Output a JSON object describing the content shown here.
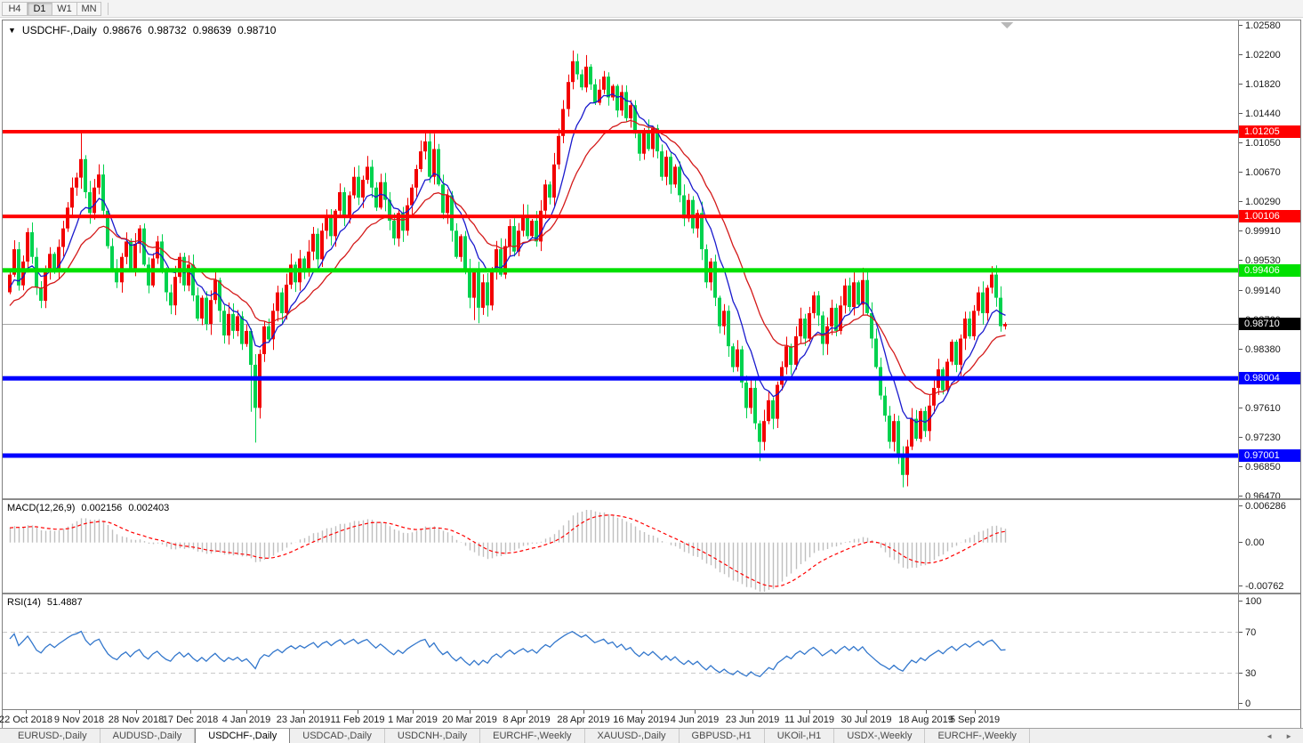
{
  "toolbar": {
    "timeframes": [
      {
        "label": "H4",
        "active": false
      },
      {
        "label": "D1",
        "active": true
      },
      {
        "label": "W1",
        "active": false
      },
      {
        "label": "MN",
        "active": false
      }
    ]
  },
  "chart": {
    "title_symbol": "USDCHF-,Daily",
    "ohlc": {
      "open": "0.98676",
      "high": "0.98732",
      "low": "0.98639",
      "close": "0.98710"
    }
  },
  "macd_panel": {
    "label": "MACD(12,26,9)",
    "value_main": "0.002156",
    "value_signal": "0.002403",
    "axis_labels": [
      "0.006286",
      "0.00",
      "-0.00762"
    ],
    "axis_values": [
      0.006286,
      0.0,
      -0.00762
    ]
  },
  "rsi_panel": {
    "label": "RSI(14)",
    "value": "51.4887",
    "axis_labels": [
      "100",
      "70",
      "30",
      "0"
    ],
    "axis_values": [
      100,
      70,
      30,
      0
    ],
    "dashed_levels": [
      70,
      30
    ]
  },
  "tabs": {
    "items": [
      {
        "label": "EURUSD-,Daily",
        "active": false
      },
      {
        "label": "AUDUSD-,Daily",
        "active": false
      },
      {
        "label": "USDCHF-,Daily",
        "active": true
      },
      {
        "label": "USDCAD-,Daily",
        "active": false
      },
      {
        "label": "USDCNH-,Daily",
        "active": false
      },
      {
        "label": "EURCHF-,Weekly",
        "active": false
      },
      {
        "label": "XAUUSD-,Daily",
        "active": false
      },
      {
        "label": "GBPUSD-,H1",
        "active": false
      },
      {
        "label": "UKOil-,H1",
        "active": false
      },
      {
        "label": "USDX-,Weekly",
        "active": false
      },
      {
        "label": "EURCHF-,Weekly",
        "active": false
      }
    ],
    "scroll_left": "◄",
    "scroll_right": "►"
  },
  "chart_data": {
    "type": "candlestick",
    "symbol": "USDCHF",
    "period": "Daily",
    "price_ticks": [
      "1.02580",
      "1.02200",
      "1.01820",
      "1.01440",
      "1.01050",
      "1.00670",
      "1.00290",
      "0.99910",
      "0.99530",
      "0.99140",
      "0.98760",
      "0.98380",
      "0.97610",
      "0.97230",
      "0.96850",
      "0.96470"
    ],
    "scale": {
      "top": 1.02649,
      "bottom": 0.96447
    },
    "levels": [
      {
        "label": "1.01205",
        "price": 1.01205,
        "color": "#ff0000",
        "weight": 4
      },
      {
        "label": "1.00106",
        "price": 1.00106,
        "color": "#ff0000",
        "weight": 4
      },
      {
        "label": "0.99406",
        "price": 0.99406,
        "color": "#00e000",
        "weight": 5
      },
      {
        "label": "0.98004",
        "price": 0.98004,
        "color": "#0000ff",
        "weight": 5
      },
      {
        "label": "0.97001",
        "price": 0.97001,
        "color": "#0000ff",
        "weight": 5
      }
    ],
    "current_price": {
      "value": 0.9871,
      "label": "0.98710"
    },
    "shift_marker_pos": 0.813,
    "dates": [
      {
        "label": "22 Oct 2018",
        "pos": 0.019
      },
      {
        "label": "9 Nov 2018",
        "pos": 0.062
      },
      {
        "label": "28 Nov 2018",
        "pos": 0.108
      },
      {
        "label": "17 Dec 2018",
        "pos": 0.152
      },
      {
        "label": "4 Jan 2019",
        "pos": 0.197
      },
      {
        "label": "23 Jan 2019",
        "pos": 0.243
      },
      {
        "label": "11 Feb 2019",
        "pos": 0.287
      },
      {
        "label": "1 Mar 2019",
        "pos": 0.332
      },
      {
        "label": "20 Mar 2019",
        "pos": 0.378
      },
      {
        "label": "8 Apr 2019",
        "pos": 0.424
      },
      {
        "label": "28 Apr 2019",
        "pos": 0.47
      },
      {
        "label": "16 May 2019",
        "pos": 0.517
      },
      {
        "label": "4 Jun 2019",
        "pos": 0.56
      },
      {
        "label": "23 Jun 2019",
        "pos": 0.607
      },
      {
        "label": "11 Jul 2019",
        "pos": 0.653
      },
      {
        "label": "30 Jul 2019",
        "pos": 0.699
      },
      {
        "label": "18 Aug 2019",
        "pos": 0.747
      },
      {
        "label": "5 Sep 2019",
        "pos": 0.787
      }
    ],
    "colors": {
      "bull": "#f20000",
      "bear": "#00d24e",
      "ma_fast": "#1a1acd",
      "ma_slow": "#d41a1a",
      "macd_hist": "#bfbfbf",
      "macd_signal": "#ff0000",
      "rsi_line": "#3377cc",
      "rsi_dash": "#c8c8c8",
      "current_line": "#a6a6a6",
      "shift_marker": "#b8b8b8"
    },
    "ma_fast_period": 9,
    "ma_slow_period": 21,
    "macd_params": [
      12,
      26,
      9
    ],
    "rsi_period": 14,
    "first_open": 0.9912,
    "extremes": {
      "max_high": 1.0226,
      "min_low": 0.9659
    },
    "pre_closes": [
      0.979,
      0.9782,
      0.9801,
      0.9815,
      0.9798,
      0.9822,
      0.9838,
      0.982,
      0.9845,
      0.9862,
      0.984,
      0.9858,
      0.9875,
      0.9855,
      0.9872,
      0.989,
      0.9868,
      0.9885,
      0.9902,
      0.988,
      0.9895,
      0.9912,
      0.9892,
      0.9908,
      0.9925,
      0.9905,
      0.9918,
      0.9935,
      0.9915,
      0.9928
    ],
    "closes": [
      0.9935,
      0.9968,
      0.9921,
      0.9952,
      0.999,
      0.9958,
      0.9918,
      0.9901,
      0.9938,
      0.9962,
      0.9943,
      0.9971,
      0.9995,
      1.0022,
      1.0048,
      1.0061,
      1.0085,
      1.0042,
      1.0015,
      1.0048,
      1.0065,
      1.0018,
      0.9972,
      0.9941,
      0.9925,
      0.9958,
      0.9978,
      0.9942,
      0.9975,
      0.9995,
      0.9948,
      0.9921,
      0.9956,
      0.9978,
      0.9941,
      0.9912,
      0.9895,
      0.9932,
      0.9958,
      0.9921,
      0.9948,
      0.9908,
      0.9878,
      0.9905,
      0.9871,
      0.9902,
      0.9928,
      0.9888,
      0.9856,
      0.9884,
      0.9862,
      0.9881,
      0.9845,
      0.9862,
      0.9818,
      0.9762,
      0.9832,
      0.9868,
      0.9851,
      0.9888,
      0.9912,
      0.9885,
      0.9922,
      0.9948,
      0.9925,
      0.9956,
      0.9938,
      0.9965,
      0.9988,
      0.9955,
      0.9992,
      1.0012,
      0.9985,
      1.0018,
      1.0042,
      1.0012,
      1.0038,
      1.0062,
      1.0035,
      1.0058,
      1.0075,
      1.0048,
      1.0022,
      1.0055,
      1.0032,
      1.0005,
      0.9982,
      1.0015,
      0.9992,
      1.0025,
      1.0048,
      1.0072,
      1.0095,
      1.0108,
      1.0062,
      1.0098,
      1.0052,
      1.0015,
      1.0038,
      0.9992,
      0.9958,
      0.9985,
      0.9942,
      0.9905,
      0.9938,
      0.9892,
      0.9925,
      0.9895,
      0.9942,
      0.9968,
      0.9935,
      0.9972,
      0.9998,
      0.9965,
      0.9992,
      1.0012,
      0.9985,
      1.0005,
      0.9978,
      1.0018,
      1.0052,
      1.0035,
      1.0078,
      1.0115,
      1.015,
      1.0185,
      1.0212,
      1.0195,
      1.0178,
      1.0205,
      1.0182,
      1.0158,
      1.0175,
      1.0192,
      1.0165,
      1.018,
      1.0148,
      1.0172,
      1.0138,
      1.0155,
      1.0118,
      1.0092,
      1.0122,
      1.0098,
      1.0125,
      1.0095,
      1.0062,
      1.0088,
      1.0052,
      1.0075,
      1.0038,
      1.0008,
      1.0032,
      0.9995,
      1.0015,
      0.9968,
      0.9925,
      0.9952,
      0.9905,
      0.9868,
      0.9888,
      0.9842,
      0.9815,
      0.9838,
      0.9795,
      0.9762,
      0.9788,
      0.9742,
      0.9718,
      0.9745,
      0.9772,
      0.9748,
      0.9792,
      0.9815,
      0.9842,
      0.9818,
      0.9855,
      0.9878,
      0.9852,
      0.9885,
      0.9908,
      0.9882,
      0.9845,
      0.9868,
      0.9892,
      0.9862,
      0.9895,
      0.9921,
      0.9893,
      0.9925,
      0.9896,
      0.9928,
      0.9885,
      0.9852,
      0.9815,
      0.9778,
      0.9752,
      0.9718,
      0.9745,
      0.9702,
      0.9675,
      0.9712,
      0.9748,
      0.9722,
      0.9758,
      0.9732,
      0.9765,
      0.9788,
      0.9812,
      0.9785,
      0.9822,
      0.9848,
      0.9818,
      0.9852,
      0.9878,
      0.9855,
      0.9888,
      0.9912,
      0.9885,
      0.9918,
      0.9935,
      0.9905,
      0.9868,
      0.9871
    ],
    "spikes": [
      {
        "i": 16,
        "high": 1.0121
      },
      {
        "i": 54,
        "low": 0.9757
      },
      {
        "i": 55,
        "low": 0.9717
      },
      {
        "i": 80,
        "high": 1.0089
      },
      {
        "i": 93,
        "high": 1.0121
      },
      {
        "i": 95,
        "high": 1.0118
      },
      {
        "i": 104,
        "low": 0.9876
      },
      {
        "i": 105,
        "low": 0.9872
      },
      {
        "i": 126,
        "high": 1.0226
      },
      {
        "i": 129,
        "high": 1.022
      },
      {
        "i": 168,
        "low": 0.9693
      },
      {
        "i": 189,
        "high": 0.9938
      },
      {
        "i": 191,
        "high": 0.9944
      },
      {
        "i": 200,
        "low": 0.9659
      },
      {
        "i": 220,
        "high": 0.9946
      },
      {
        "i": 223,
        "high": 0.98732,
        "low": 0.98639
      }
    ]
  }
}
